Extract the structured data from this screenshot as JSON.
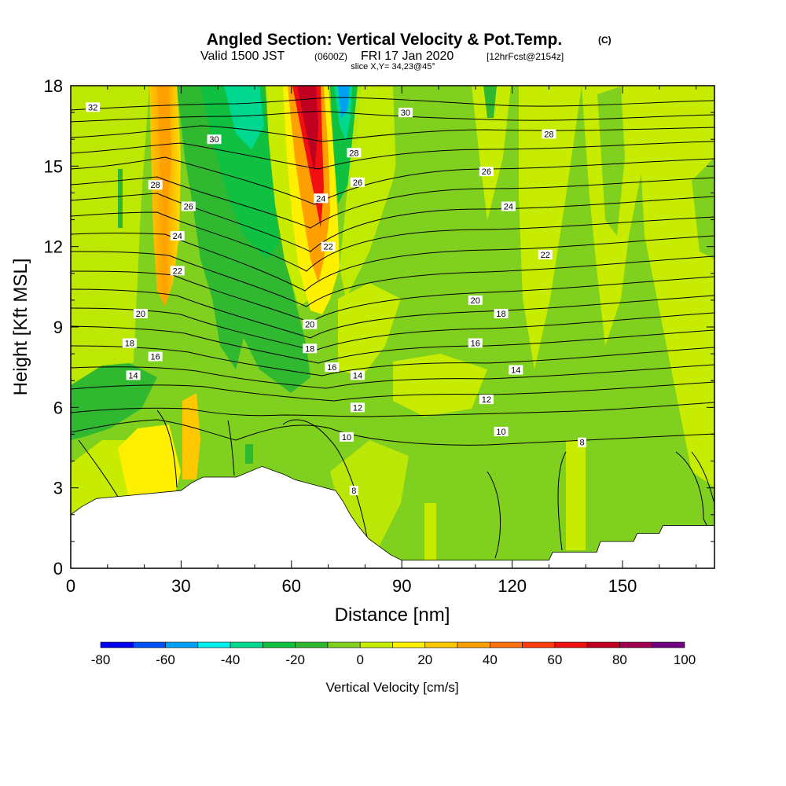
{
  "header": {
    "title": "Angled Section: Vertical Velocity & Pot.Temp.",
    "title_suffix": "(C)",
    "sub_a": "Valid 1500 JST",
    "sub_b": "(0600Z)",
    "sub_c": "FRI 17 Jan 2020",
    "sub_d": "[12hrFcst@2154z]",
    "slice": "slice X,Y= 34,23@45°"
  },
  "chart_data": {
    "type": "heatmap",
    "xlabel": "Distance [nm]",
    "ylabel": "Height [Kft MSL]",
    "xlim": [
      0,
      175
    ],
    "ylim": [
      0,
      18
    ],
    "x_ticks": [
      0,
      30,
      60,
      90,
      120,
      150
    ],
    "y_ticks": [
      0,
      3,
      6,
      9,
      12,
      15,
      18
    ],
    "colorbar": {
      "title": "Vertical Velocity [cm/s]",
      "levels": [
        -80,
        -70,
        -60,
        -50,
        -40,
        -30,
        -20,
        -10,
        0,
        10,
        20,
        30,
        40,
        50,
        60,
        70,
        80,
        90,
        100
      ],
      "tick_labels": [
        "-80",
        "-60",
        "-40",
        "-20",
        "0",
        "20",
        "40",
        "60",
        "80",
        "100"
      ],
      "tick_values": [
        -80,
        -60,
        -40,
        -20,
        0,
        20,
        40,
        60,
        80,
        100
      ],
      "colors": [
        "#0000f0",
        "#0050f8",
        "#00a0f8",
        "#00f0f0",
        "#00d890",
        "#10c040",
        "#30b830",
        "#80d020",
        "#c8ec00",
        "#fff000",
        "#ffc800",
        "#ffa000",
        "#ff7010",
        "#ff3c10",
        "#f01010",
        "#c00020",
        "#a00050",
        "#700080"
      ]
    },
    "terrain_kft": [
      [
        0,
        2.0
      ],
      [
        3,
        2.3
      ],
      [
        7,
        2.6
      ],
      [
        30,
        2.9
      ],
      [
        33,
        3.2
      ],
      [
        36,
        3.4
      ],
      [
        45,
        3.4
      ],
      [
        52,
        3.8
      ],
      [
        58,
        3.5
      ],
      [
        61,
        3.3
      ],
      [
        72,
        2.9
      ],
      [
        74,
        2.5
      ],
      [
        76,
        2.0
      ],
      [
        78,
        1.6
      ],
      [
        81,
        1.1
      ],
      [
        84,
        0.8
      ],
      [
        87,
        0.5
      ],
      [
        90,
        0.3
      ],
      [
        130,
        0.3
      ],
      [
        131,
        0.6
      ],
      [
        143,
        0.6
      ],
      [
        144,
        1.0
      ],
      [
        153,
        1.0
      ],
      [
        154,
        1.3
      ],
      [
        160,
        1.3
      ],
      [
        161,
        1.6
      ],
      [
        175,
        1.6
      ]
    ],
    "theta_labels": [
      {
        "text": "32",
        "x": 6,
        "y": 17.2
      },
      {
        "text": "30",
        "x": 39,
        "y": 16.0
      },
      {
        "text": "28",
        "x": 23,
        "y": 14.3
      },
      {
        "text": "26",
        "x": 32,
        "y": 13.5
      },
      {
        "text": "24",
        "x": 29,
        "y": 12.4
      },
      {
        "text": "22",
        "x": 29,
        "y": 11.1
      },
      {
        "text": "20",
        "x": 19,
        "y": 9.5
      },
      {
        "text": "18",
        "x": 16,
        "y": 8.4
      },
      {
        "text": "16",
        "x": 23,
        "y": 7.9
      },
      {
        "text": "14",
        "x": 17,
        "y": 7.2
      },
      {
        "text": "30",
        "x": 91,
        "y": 17.0
      },
      {
        "text": "28",
        "x": 77,
        "y": 15.5
      },
      {
        "text": "26",
        "x": 78,
        "y": 14.4
      },
      {
        "text": "24",
        "x": 68,
        "y": 13.8
      },
      {
        "text": "22",
        "x": 70,
        "y": 12.0
      },
      {
        "text": "20",
        "x": 65,
        "y": 9.1
      },
      {
        "text": "18",
        "x": 65,
        "y": 8.2
      },
      {
        "text": "16",
        "x": 71,
        "y": 7.5
      },
      {
        "text": "14",
        "x": 78,
        "y": 7.2
      },
      {
        "text": "12",
        "x": 78,
        "y": 6.0
      },
      {
        "text": "10",
        "x": 75,
        "y": 4.9
      },
      {
        "text": "8",
        "x": 77,
        "y": 2.9
      },
      {
        "text": "28",
        "x": 130,
        "y": 16.2
      },
      {
        "text": "26",
        "x": 113,
        "y": 14.8
      },
      {
        "text": "24",
        "x": 119,
        "y": 13.5
      },
      {
        "text": "22",
        "x": 129,
        "y": 11.7
      },
      {
        "text": "20",
        "x": 110,
        "y": 10.0
      },
      {
        "text": "18",
        "x": 117,
        "y": 9.5
      },
      {
        "text": "16",
        "x": 110,
        "y": 8.4
      },
      {
        "text": "14",
        "x": 121,
        "y": 7.4
      },
      {
        "text": "12",
        "x": 113,
        "y": 6.3
      },
      {
        "text": "10",
        "x": 117,
        "y": 5.1
      },
      {
        "text": "8",
        "x": 139,
        "y": 4.7
      }
    ]
  }
}
